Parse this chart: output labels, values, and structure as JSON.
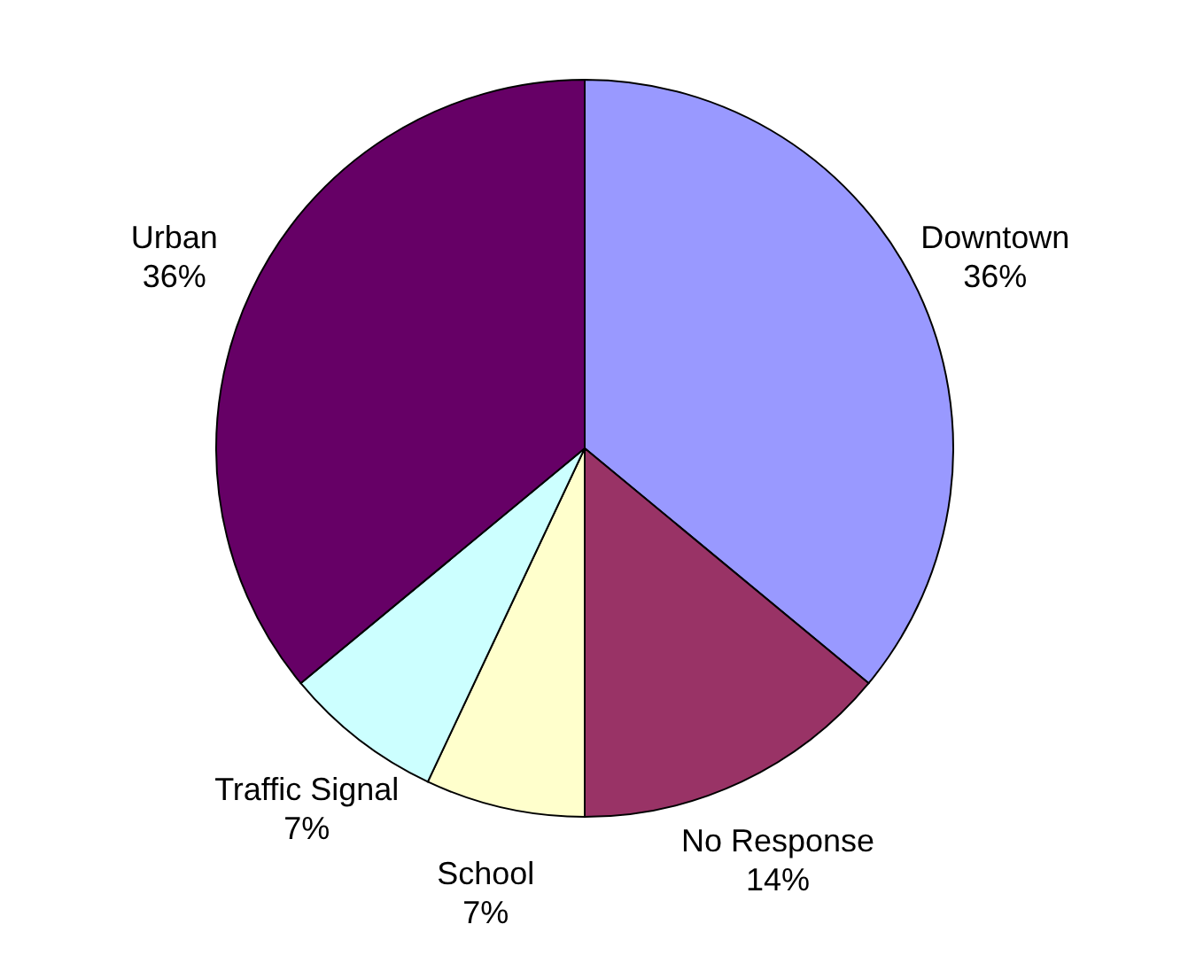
{
  "chart_data": {
    "type": "pie",
    "categories": [
      "Downtown",
      "No Response",
      "School",
      "Traffic Signal",
      "Urban"
    ],
    "values": [
      36,
      14,
      7,
      7,
      36
    ],
    "value_labels": [
      "36%",
      "14%",
      "7%",
      "7%",
      "36%"
    ],
    "colors": [
      "#9999ff",
      "#993366",
      "#ffffcc",
      "#ccffff",
      "#660066"
    ],
    "legend": false
  }
}
